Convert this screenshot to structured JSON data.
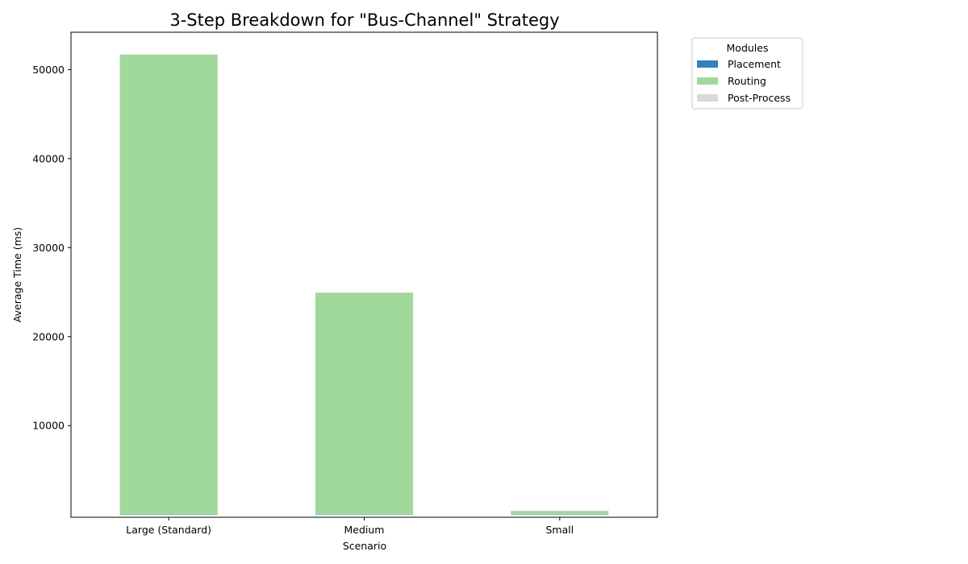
{
  "chart_data": {
    "type": "bar",
    "stacked": true,
    "title": "3-Step Breakdown for \"Bus-Channel\" Strategy",
    "xlabel": "Scenario",
    "ylabel": "Average Time (ms)",
    "categories": [
      "Large (Standard)",
      "Medium",
      "Small"
    ],
    "series": [
      {
        "name": "Placement",
        "color": "#3182bd",
        "values": [
          5,
          3,
          1
        ]
      },
      {
        "name": "Routing",
        "color": "#a1d99b",
        "values": [
          51700,
          24950,
          430
        ]
      },
      {
        "name": "Post-Process",
        "color": "#d9d9d9",
        "values": [
          2,
          1,
          1
        ]
      }
    ],
    "ylim": [
      -300,
      54200
    ],
    "yticks": [
      10000,
      20000,
      30000,
      40000,
      50000
    ],
    "legend": {
      "title": "Modules",
      "placement": "outside-top-right"
    },
    "grid": false
  }
}
